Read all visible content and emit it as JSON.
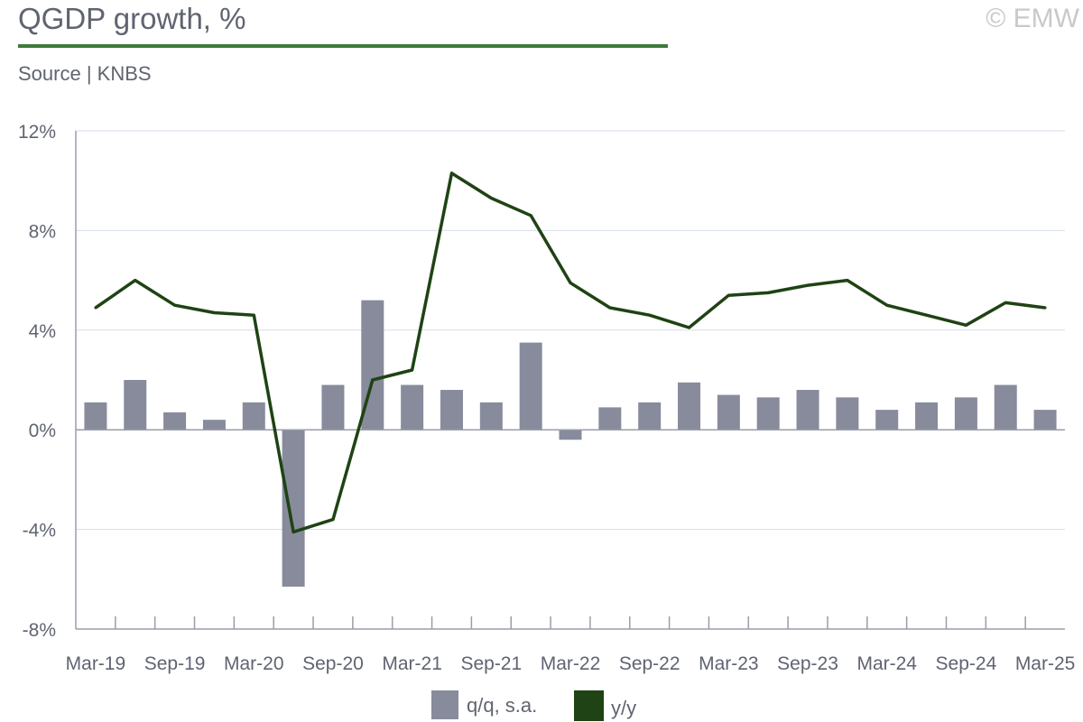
{
  "header": {
    "title": "QGDP growth, %",
    "source": "Source | KNBS",
    "copyright": "© EMW"
  },
  "chart_data": {
    "type": "bar",
    "title": "QGDP growth, %",
    "xlabel": "",
    "ylabel": "",
    "ylim": [
      -8,
      12
    ],
    "yticks": [
      -8,
      -4,
      0,
      4,
      8,
      12
    ],
    "ytick_labels": [
      "-8%",
      "-4%",
      "0%",
      "4%",
      "8%",
      "12%"
    ],
    "x": [
      "Mar-19",
      "Jun-19",
      "Sep-19",
      "Dec-19",
      "Mar-20",
      "Jun-20",
      "Sep-20",
      "Dec-20",
      "Mar-21",
      "Jun-21",
      "Sep-21",
      "Dec-21",
      "Mar-22",
      "Jun-22",
      "Sep-22",
      "Dec-22",
      "Mar-23",
      "Jun-23",
      "Sep-23",
      "Dec-23",
      "Mar-24",
      "Jun-24",
      "Sep-24",
      "Dec-24",
      "Mar-25"
    ],
    "xtick_labels": [
      "Mar-19",
      "Sep-19",
      "Mar-20",
      "Sep-20",
      "Mar-21",
      "Sep-21",
      "Mar-22",
      "Sep-22",
      "Mar-23",
      "Sep-23",
      "Mar-24",
      "Sep-24",
      "Mar-25"
    ],
    "grid": true,
    "legend": "bottom",
    "series": [
      {
        "name": "q/q, s.a.",
        "kind": "bar",
        "color": "#878b9c",
        "values": [
          1.1,
          2.0,
          0.7,
          0.4,
          1.1,
          -6.3,
          1.8,
          5.2,
          1.8,
          1.6,
          1.1,
          3.5,
          -0.4,
          0.9,
          1.1,
          1.9,
          1.4,
          1.3,
          1.6,
          1.3,
          0.8,
          1.1,
          1.3,
          1.8,
          0.8
        ]
      },
      {
        "name": "y/y",
        "kind": "line",
        "color": "#1f4314",
        "values": [
          4.9,
          6.0,
          5.0,
          4.7,
          4.6,
          -4.1,
          -3.6,
          2.0,
          2.4,
          10.3,
          9.3,
          8.6,
          5.9,
          4.9,
          4.6,
          4.1,
          5.4,
          5.5,
          5.8,
          6.0,
          5.0,
          4.6,
          4.2,
          5.1,
          4.9
        ]
      }
    ]
  }
}
